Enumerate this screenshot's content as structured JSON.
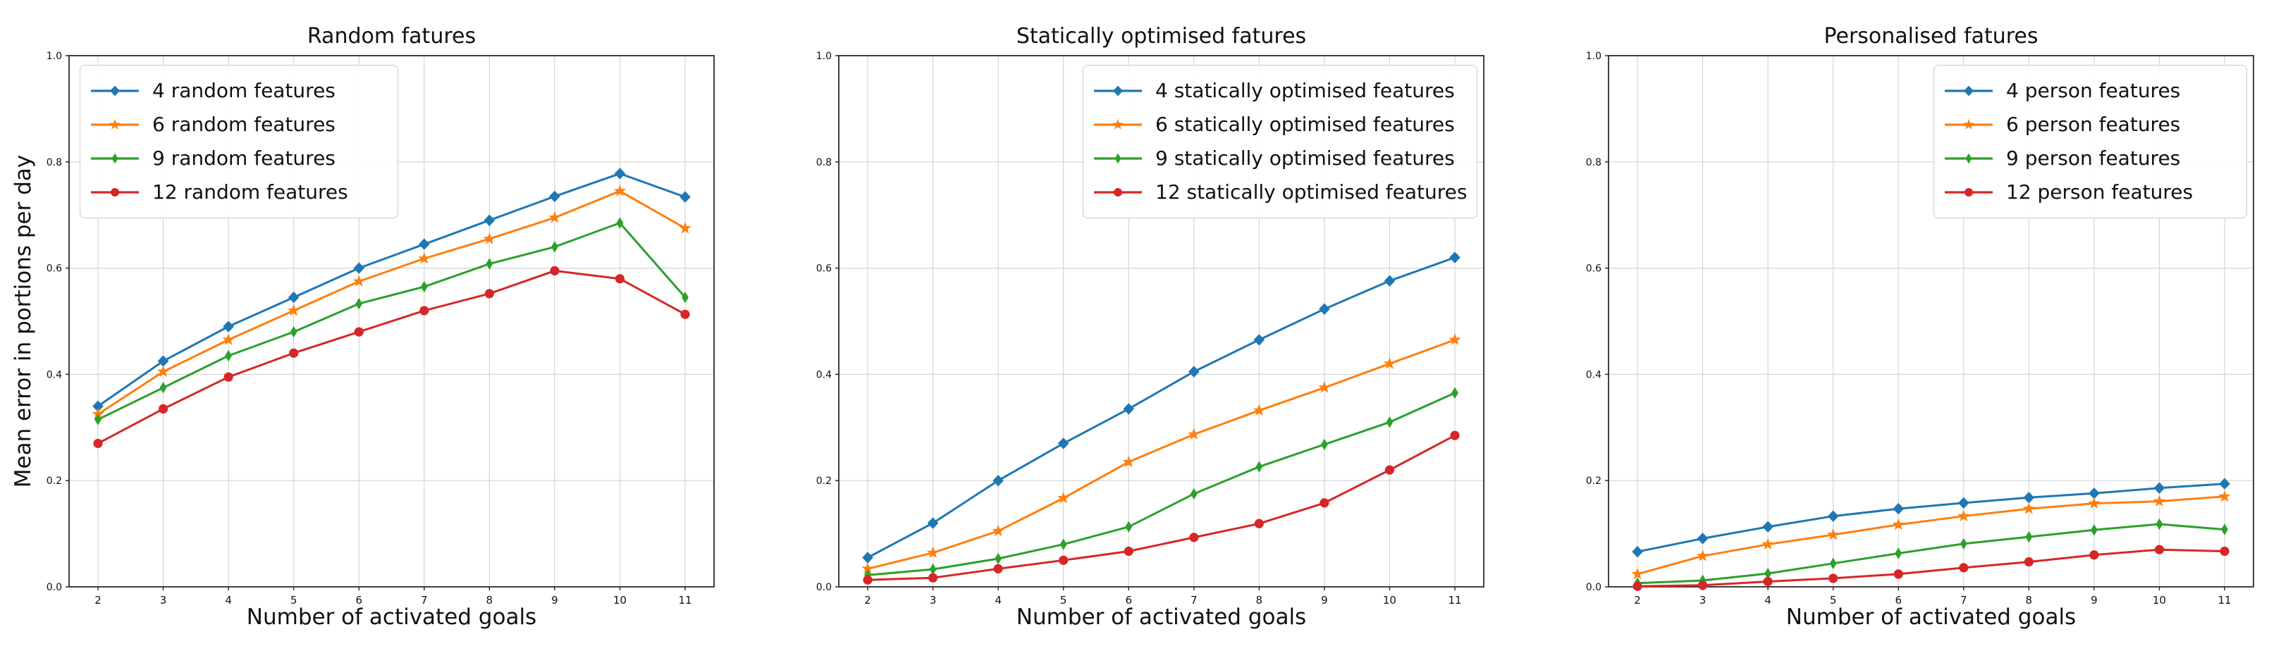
{
  "figure": {
    "background": "#ffffff",
    "grid_color": "#d4d4d4",
    "spine_color": "#2b2b2b",
    "tick_color": "#2b2b2b",
    "text_color": "#111111",
    "series_colors": {
      "blue": "#1f77b4",
      "orange": "#ff7f0e",
      "green": "#2ca02c",
      "red": "#d62728"
    }
  },
  "chart_data": [
    {
      "type": "line",
      "title": "Random fatures",
      "xlabel": "Number of activated goals",
      "ylabel": "Mean error in portions per day",
      "x": [
        2,
        3,
        4,
        5,
        6,
        7,
        8,
        9,
        10,
        11
      ],
      "x_tick_labels": [
        "2",
        "3",
        "4",
        "5",
        "6",
        "7",
        "8",
        "9",
        "10",
        "11"
      ],
      "y_tick_labels": [
        "0.0",
        "0.2",
        "0.4",
        "0.6",
        "0.8",
        "1.0"
      ],
      "y_ticks": [
        0.0,
        0.2,
        0.4,
        0.6,
        0.8,
        1.0
      ],
      "ylim": [
        0.0,
        1.0
      ],
      "grid": true,
      "legend_position": "upper-left",
      "series": [
        {
          "name": "4 random features",
          "color": "#1f77b4",
          "marker": "diamond",
          "values": [
            0.34,
            0.425,
            0.49,
            0.545,
            0.6,
            0.645,
            0.69,
            0.735,
            0.778,
            0.734
          ]
        },
        {
          "name": "6 random features",
          "color": "#ff7f0e",
          "marker": "star",
          "values": [
            0.325,
            0.405,
            0.465,
            0.52,
            0.575,
            0.618,
            0.655,
            0.695,
            0.745,
            0.675
          ]
        },
        {
          "name": "9 random features",
          "color": "#2ca02c",
          "marker": "thin-diamond",
          "values": [
            0.315,
            0.375,
            0.435,
            0.48,
            0.533,
            0.565,
            0.608,
            0.64,
            0.685,
            0.545
          ]
        },
        {
          "name": "12 random features",
          "color": "#d62728",
          "marker": "circle",
          "values": [
            0.27,
            0.335,
            0.395,
            0.44,
            0.48,
            0.52,
            0.552,
            0.595,
            0.58,
            0.513
          ]
        }
      ]
    },
    {
      "type": "line",
      "title": "Statically optimised fatures",
      "xlabel": "Number of activated goals",
      "ylabel": "",
      "x": [
        2,
        3,
        4,
        5,
        6,
        7,
        8,
        9,
        10,
        11
      ],
      "x_tick_labels": [
        "2",
        "3",
        "4",
        "5",
        "6",
        "7",
        "8",
        "9",
        "10",
        "11"
      ],
      "y_tick_labels": [
        "0.0",
        "0.2",
        "0.4",
        "0.6",
        "0.8",
        "1.0"
      ],
      "y_ticks": [
        0.0,
        0.2,
        0.4,
        0.6,
        0.8,
        1.0
      ],
      "ylim": [
        0.0,
        1.0
      ],
      "grid": true,
      "legend_position": "upper-right",
      "series": [
        {
          "name": "4 statically optimised features",
          "color": "#1f77b4",
          "marker": "diamond",
          "values": [
            0.055,
            0.12,
            0.2,
            0.27,
            0.335,
            0.405,
            0.465,
            0.523,
            0.576,
            0.62
          ]
        },
        {
          "name": "6 statically optimised features",
          "color": "#ff7f0e",
          "marker": "star",
          "values": [
            0.034,
            0.064,
            0.105,
            0.167,
            0.235,
            0.287,
            0.332,
            0.375,
            0.42,
            0.465
          ]
        },
        {
          "name": "9 statically optimised features",
          "color": "#2ca02c",
          "marker": "thin-diamond",
          "values": [
            0.022,
            0.033,
            0.053,
            0.08,
            0.113,
            0.175,
            0.226,
            0.268,
            0.31,
            0.365
          ]
        },
        {
          "name": "12 statically optimised features",
          "color": "#d62728",
          "marker": "circle",
          "values": [
            0.013,
            0.017,
            0.034,
            0.05,
            0.067,
            0.093,
            0.119,
            0.158,
            0.22,
            0.285
          ]
        }
      ]
    },
    {
      "type": "line",
      "title": "Personalised fatures",
      "xlabel": "Number of activated goals",
      "ylabel": "",
      "x": [
        2,
        3,
        4,
        5,
        6,
        7,
        8,
        9,
        10,
        11
      ],
      "x_tick_labels": [
        "2",
        "3",
        "4",
        "5",
        "6",
        "7",
        "8",
        "9",
        "10",
        "11"
      ],
      "y_tick_labels": [
        "0.0",
        "0.2",
        "0.4",
        "0.6",
        "0.8",
        "1.0"
      ],
      "y_ticks": [
        0.0,
        0.2,
        0.4,
        0.6,
        0.8,
        1.0
      ],
      "ylim": [
        0.0,
        1.0
      ],
      "grid": true,
      "legend_position": "upper-right",
      "series": [
        {
          "name": "4 person features",
          "color": "#1f77b4",
          "marker": "diamond",
          "values": [
            0.066,
            0.091,
            0.113,
            0.133,
            0.147,
            0.158,
            0.168,
            0.176,
            0.186,
            0.194
          ]
        },
        {
          "name": "6 person features",
          "color": "#ff7f0e",
          "marker": "star",
          "values": [
            0.024,
            0.058,
            0.08,
            0.098,
            0.117,
            0.133,
            0.147,
            0.157,
            0.161,
            0.17
          ]
        },
        {
          "name": "9 person features",
          "color": "#2ca02c",
          "marker": "thin-diamond",
          "values": [
            0.007,
            0.012,
            0.025,
            0.044,
            0.063,
            0.081,
            0.094,
            0.107,
            0.118,
            0.108
          ]
        },
        {
          "name": "12 person features",
          "color": "#d62728",
          "marker": "circle",
          "values": [
            0.001,
            0.003,
            0.01,
            0.016,
            0.024,
            0.036,
            0.047,
            0.06,
            0.07,
            0.067
          ]
        }
      ]
    }
  ]
}
